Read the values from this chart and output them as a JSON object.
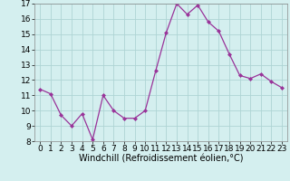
{
  "x": [
    0,
    1,
    2,
    3,
    4,
    5,
    6,
    7,
    8,
    9,
    10,
    11,
    12,
    13,
    14,
    15,
    16,
    17,
    18,
    19,
    20,
    21,
    22,
    23
  ],
  "y": [
    11.4,
    11.1,
    9.7,
    9.0,
    9.8,
    8.1,
    11.0,
    10.0,
    9.5,
    9.5,
    10.0,
    12.6,
    15.1,
    17.0,
    16.3,
    16.9,
    15.8,
    15.2,
    13.7,
    12.3,
    12.1,
    12.4,
    11.9,
    11.5
  ],
  "line_color": "#993399",
  "marker": "D",
  "marker_size": 2,
  "bg_color": "#d4efef",
  "grid_color": "#aed4d4",
  "xlabel": "Windchill (Refroidissement éolien,°C)",
  "xlabel_fontsize": 7,
  "tick_fontsize": 6.5,
  "ylim": [
    8,
    17
  ],
  "yticks": [
    8,
    9,
    10,
    11,
    12,
    13,
    14,
    15,
    16,
    17
  ],
  "xticks": [
    0,
    1,
    2,
    3,
    4,
    5,
    6,
    7,
    8,
    9,
    10,
    11,
    12,
    13,
    14,
    15,
    16,
    17,
    18,
    19,
    20,
    21,
    22,
    23
  ]
}
